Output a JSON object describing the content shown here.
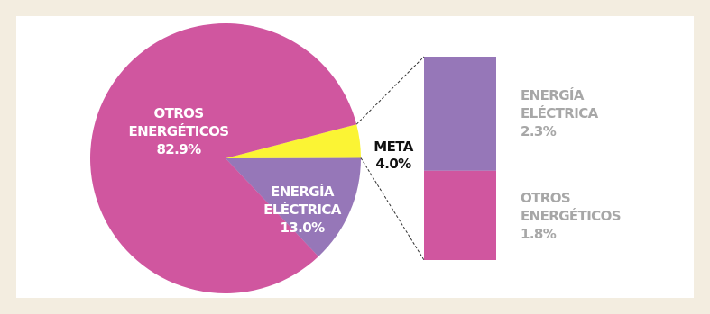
{
  "colors": {
    "background": "#f3ede0",
    "panel": "#ffffff",
    "pink": "#d0569f",
    "purple": "#9677b8",
    "yellow": "#fbf434",
    "white_text": "#ffffff",
    "black_text": "#111111",
    "gray_text": "#a7a7a7",
    "connector": "#333333"
  },
  "chart_data": {
    "type": "pie",
    "subtype": "pie-of-bar",
    "slices": [
      {
        "id": "otros",
        "label_lines": [
          "OTROS",
          "ENERGÉTICOS",
          "82.9%"
        ],
        "value": 82.9,
        "color": "#d0569f"
      },
      {
        "id": "electrica",
        "label_lines": [
          "ENERGÍA",
          "ELÉCTRICA",
          "13.0%"
        ],
        "value": 13.0,
        "color": "#9677b8"
      },
      {
        "id": "meta",
        "label_lines": [
          "META",
          "4.0%"
        ],
        "value": 4.0,
        "color": "#fbf434"
      }
    ],
    "breakdown": {
      "of": "meta",
      "type": "stacked-bar",
      "segments": [
        {
          "id": "electrica",
          "label_lines": [
            "ENERGÍA",
            "ELÉCTRICA",
            "2.3%"
          ],
          "value": 2.3,
          "color": "#9677b8",
          "order": "top"
        },
        {
          "id": "otros",
          "label_lines": [
            "OTROS",
            "ENERGÉTICOS",
            "1.8%"
          ],
          "value": 1.8,
          "color": "#d0569f",
          "order": "bottom"
        }
      ]
    }
  }
}
